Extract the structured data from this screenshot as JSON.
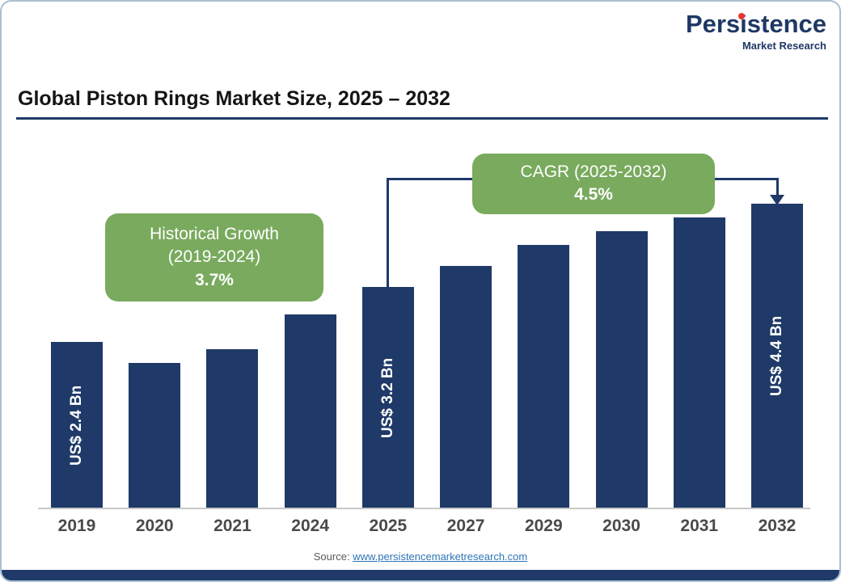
{
  "logo": {
    "brand": "Persistence",
    "tagline": "Market Research",
    "brand_color": "#1f3864",
    "dot_color": "#e8372c"
  },
  "header": {
    "title": "Global Piston Rings Market Size, 2025 – 2032"
  },
  "chart_data": {
    "type": "bar",
    "title": "Global Piston Rings Market Size, 2025 – 2032",
    "categories": [
      "2019",
      "2020",
      "2021",
      "2024",
      "2025",
      "2027",
      "2029",
      "2030",
      "2031",
      "2032"
    ],
    "values": [
      2.4,
      2.1,
      2.3,
      2.8,
      3.2,
      3.5,
      3.8,
      4.0,
      4.2,
      4.4
    ],
    "bar_labels": [
      "US$ 2.4 Bn",
      "",
      "",
      "",
      "US$ 3.2 Bn",
      "",
      "",
      "",
      "",
      "US$ 4.4 Bn"
    ],
    "unit": "US$ Bn",
    "ylim": [
      0,
      4.4
    ],
    "grid": false,
    "legend": false,
    "bar_color": "#1f3a68",
    "annotations": {
      "historical": {
        "line1": "Historical Growth",
        "line2": "(2019-2024)",
        "value": "3.7%"
      },
      "cagr": {
        "label": "CAGR (2025-2032)",
        "value": "4.5%"
      }
    }
  },
  "footer": {
    "source_label": "Source:",
    "source_link": "www.persistencemarketresearch.com"
  },
  "colors": {
    "bar": "#1f3a68",
    "callout_green": "#79aa5e",
    "navy": "#1f3a68",
    "axis_gray": "#c8c8c8"
  }
}
